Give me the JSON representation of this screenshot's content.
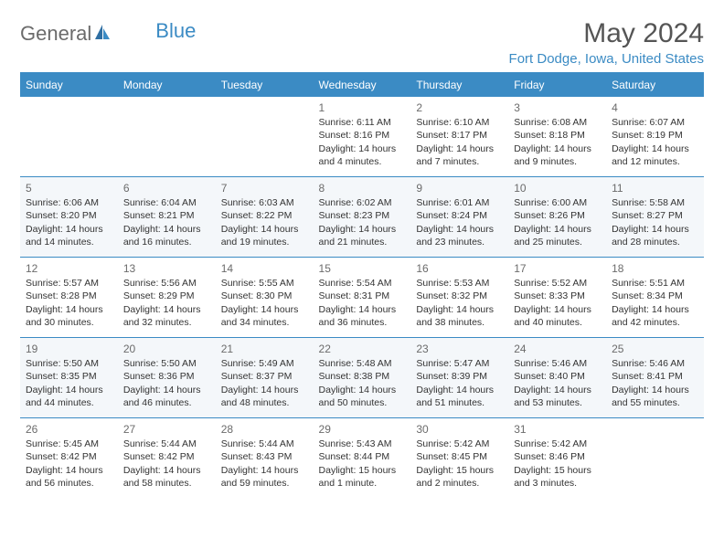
{
  "logo": {
    "general": "General",
    "blue": "Blue"
  },
  "title": "May 2024",
  "location": "Fort Dodge, Iowa, United States",
  "colors": {
    "accent": "#3b8bc4",
    "text": "#333333",
    "muted": "#6b6b6b",
    "altRow": "#f4f7fa",
    "bg": "#ffffff"
  },
  "dayHeaders": [
    "Sunday",
    "Monday",
    "Tuesday",
    "Wednesday",
    "Thursday",
    "Friday",
    "Saturday"
  ],
  "weeks": [
    [
      null,
      null,
      null,
      {
        "n": "1",
        "sr": "Sunrise: 6:11 AM",
        "ss": "Sunset: 8:16 PM",
        "d1": "Daylight: 14 hours",
        "d2": "and 4 minutes."
      },
      {
        "n": "2",
        "sr": "Sunrise: 6:10 AM",
        "ss": "Sunset: 8:17 PM",
        "d1": "Daylight: 14 hours",
        "d2": "and 7 minutes."
      },
      {
        "n": "3",
        "sr": "Sunrise: 6:08 AM",
        "ss": "Sunset: 8:18 PM",
        "d1": "Daylight: 14 hours",
        "d2": "and 9 minutes."
      },
      {
        "n": "4",
        "sr": "Sunrise: 6:07 AM",
        "ss": "Sunset: 8:19 PM",
        "d1": "Daylight: 14 hours",
        "d2": "and 12 minutes."
      }
    ],
    [
      {
        "n": "5",
        "sr": "Sunrise: 6:06 AM",
        "ss": "Sunset: 8:20 PM",
        "d1": "Daylight: 14 hours",
        "d2": "and 14 minutes."
      },
      {
        "n": "6",
        "sr": "Sunrise: 6:04 AM",
        "ss": "Sunset: 8:21 PM",
        "d1": "Daylight: 14 hours",
        "d2": "and 16 minutes."
      },
      {
        "n": "7",
        "sr": "Sunrise: 6:03 AM",
        "ss": "Sunset: 8:22 PM",
        "d1": "Daylight: 14 hours",
        "d2": "and 19 minutes."
      },
      {
        "n": "8",
        "sr": "Sunrise: 6:02 AM",
        "ss": "Sunset: 8:23 PM",
        "d1": "Daylight: 14 hours",
        "d2": "and 21 minutes."
      },
      {
        "n": "9",
        "sr": "Sunrise: 6:01 AM",
        "ss": "Sunset: 8:24 PM",
        "d1": "Daylight: 14 hours",
        "d2": "and 23 minutes."
      },
      {
        "n": "10",
        "sr": "Sunrise: 6:00 AM",
        "ss": "Sunset: 8:26 PM",
        "d1": "Daylight: 14 hours",
        "d2": "and 25 minutes."
      },
      {
        "n": "11",
        "sr": "Sunrise: 5:58 AM",
        "ss": "Sunset: 8:27 PM",
        "d1": "Daylight: 14 hours",
        "d2": "and 28 minutes."
      }
    ],
    [
      {
        "n": "12",
        "sr": "Sunrise: 5:57 AM",
        "ss": "Sunset: 8:28 PM",
        "d1": "Daylight: 14 hours",
        "d2": "and 30 minutes."
      },
      {
        "n": "13",
        "sr": "Sunrise: 5:56 AM",
        "ss": "Sunset: 8:29 PM",
        "d1": "Daylight: 14 hours",
        "d2": "and 32 minutes."
      },
      {
        "n": "14",
        "sr": "Sunrise: 5:55 AM",
        "ss": "Sunset: 8:30 PM",
        "d1": "Daylight: 14 hours",
        "d2": "and 34 minutes."
      },
      {
        "n": "15",
        "sr": "Sunrise: 5:54 AM",
        "ss": "Sunset: 8:31 PM",
        "d1": "Daylight: 14 hours",
        "d2": "and 36 minutes."
      },
      {
        "n": "16",
        "sr": "Sunrise: 5:53 AM",
        "ss": "Sunset: 8:32 PM",
        "d1": "Daylight: 14 hours",
        "d2": "and 38 minutes."
      },
      {
        "n": "17",
        "sr": "Sunrise: 5:52 AM",
        "ss": "Sunset: 8:33 PM",
        "d1": "Daylight: 14 hours",
        "d2": "and 40 minutes."
      },
      {
        "n": "18",
        "sr": "Sunrise: 5:51 AM",
        "ss": "Sunset: 8:34 PM",
        "d1": "Daylight: 14 hours",
        "d2": "and 42 minutes."
      }
    ],
    [
      {
        "n": "19",
        "sr": "Sunrise: 5:50 AM",
        "ss": "Sunset: 8:35 PM",
        "d1": "Daylight: 14 hours",
        "d2": "and 44 minutes."
      },
      {
        "n": "20",
        "sr": "Sunrise: 5:50 AM",
        "ss": "Sunset: 8:36 PM",
        "d1": "Daylight: 14 hours",
        "d2": "and 46 minutes."
      },
      {
        "n": "21",
        "sr": "Sunrise: 5:49 AM",
        "ss": "Sunset: 8:37 PM",
        "d1": "Daylight: 14 hours",
        "d2": "and 48 minutes."
      },
      {
        "n": "22",
        "sr": "Sunrise: 5:48 AM",
        "ss": "Sunset: 8:38 PM",
        "d1": "Daylight: 14 hours",
        "d2": "and 50 minutes."
      },
      {
        "n": "23",
        "sr": "Sunrise: 5:47 AM",
        "ss": "Sunset: 8:39 PM",
        "d1": "Daylight: 14 hours",
        "d2": "and 51 minutes."
      },
      {
        "n": "24",
        "sr": "Sunrise: 5:46 AM",
        "ss": "Sunset: 8:40 PM",
        "d1": "Daylight: 14 hours",
        "d2": "and 53 minutes."
      },
      {
        "n": "25",
        "sr": "Sunrise: 5:46 AM",
        "ss": "Sunset: 8:41 PM",
        "d1": "Daylight: 14 hours",
        "d2": "and 55 minutes."
      }
    ],
    [
      {
        "n": "26",
        "sr": "Sunrise: 5:45 AM",
        "ss": "Sunset: 8:42 PM",
        "d1": "Daylight: 14 hours",
        "d2": "and 56 minutes."
      },
      {
        "n": "27",
        "sr": "Sunrise: 5:44 AM",
        "ss": "Sunset: 8:42 PM",
        "d1": "Daylight: 14 hours",
        "d2": "and 58 minutes."
      },
      {
        "n": "28",
        "sr": "Sunrise: 5:44 AM",
        "ss": "Sunset: 8:43 PM",
        "d1": "Daylight: 14 hours",
        "d2": "and 59 minutes."
      },
      {
        "n": "29",
        "sr": "Sunrise: 5:43 AM",
        "ss": "Sunset: 8:44 PM",
        "d1": "Daylight: 15 hours",
        "d2": "and 1 minute."
      },
      {
        "n": "30",
        "sr": "Sunrise: 5:42 AM",
        "ss": "Sunset: 8:45 PM",
        "d1": "Daylight: 15 hours",
        "d2": "and 2 minutes."
      },
      {
        "n": "31",
        "sr": "Sunrise: 5:42 AM",
        "ss": "Sunset: 8:46 PM",
        "d1": "Daylight: 15 hours",
        "d2": "and 3 minutes."
      },
      null
    ]
  ]
}
